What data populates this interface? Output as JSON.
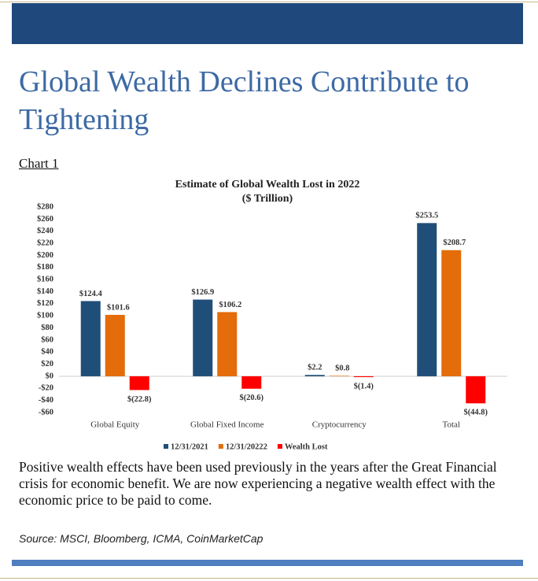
{
  "heading": "Global Wealth Declines Contribute to Tightening",
  "chart_label": "Chart 1",
  "chart_data": {
    "type": "bar",
    "title": "Estimate of Global Wealth Lost in 2022",
    "subtitle": "($ Trillion)",
    "categories": [
      "Global Equity",
      "Global Fixed Income",
      "Cryptocurrency",
      "Total"
    ],
    "series": [
      {
        "name": "12/31/2021",
        "color": "#1f4e79",
        "values": [
          124.4,
          126.9,
          2.2,
          253.5
        ],
        "value_labels": [
          "$124.4",
          "$126.9",
          "$2.2",
          "$253.5"
        ]
      },
      {
        "name": "12/31/20222",
        "color": "#e46c0a",
        "values": [
          101.6,
          106.2,
          0.8,
          208.7
        ],
        "value_labels": [
          "$101.6",
          "$106.2",
          "$0.8",
          "$208.7"
        ]
      },
      {
        "name": "Wealth Lost",
        "color": "#ff0000",
        "values": [
          -22.8,
          -20.6,
          -1.4,
          -44.8
        ],
        "value_labels": [
          "$(22.8)",
          "$(20.6)",
          "$(1.4)",
          "$(44.8)"
        ]
      }
    ],
    "ylim": [
      -60,
      280
    ],
    "yticks": [
      {
        "value": -60,
        "label": "-$60"
      },
      {
        "value": -40,
        "label": "-$40"
      },
      {
        "value": -20,
        "label": "-$20"
      },
      {
        "value": 0,
        "label": "$0"
      },
      {
        "value": 20,
        "label": "$20"
      },
      {
        "value": 40,
        "label": "$40"
      },
      {
        "value": 60,
        "label": "$60"
      },
      {
        "value": 80,
        "label": "$80"
      },
      {
        "value": 100,
        "label": "$100"
      },
      {
        "value": 120,
        "label": "$120"
      },
      {
        "value": 140,
        "label": "$140"
      },
      {
        "value": 160,
        "label": "$160"
      },
      {
        "value": 180,
        "label": "$180"
      },
      {
        "value": 200,
        "label": "$200"
      },
      {
        "value": 220,
        "label": "$220"
      },
      {
        "value": 240,
        "label": "$240"
      },
      {
        "value": 260,
        "label": "$260"
      },
      {
        "value": 280,
        "label": "$280"
      }
    ],
    "grid": false
  },
  "paragraph": "Positive wealth effects have been used previously in the years after the Great Financial crisis for economic benefit.  We are now experiencing a negative wealth effect with the economic price to be paid to come.",
  "source": "Source: MSCI, Bloomberg, ICMA, CoinMarketCap"
}
